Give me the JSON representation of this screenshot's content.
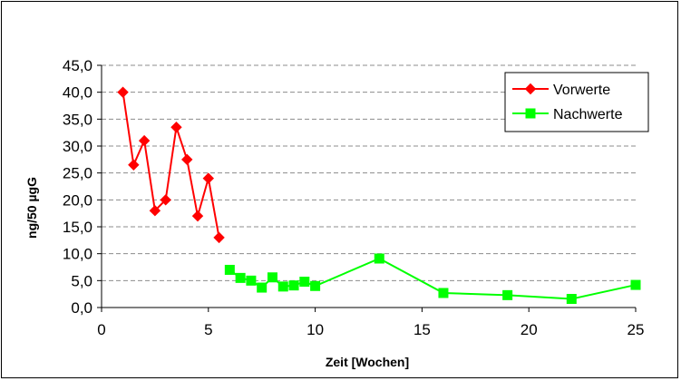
{
  "chart_data": {
    "type": "line",
    "title": "",
    "xlabel": "Zeit [Wochen]",
    "ylabel": "ng/50 µgG",
    "xlim": [
      0,
      25
    ],
    "ylim": [
      0,
      45
    ],
    "x_ticks": [
      0,
      5,
      10,
      15,
      20,
      25
    ],
    "y_ticks": [
      "0,0",
      "5,0",
      "10,0",
      "15,0",
      "20,0",
      "25,0",
      "30,0",
      "35,0",
      "40,0",
      "45,0"
    ],
    "grid": "horizontal dashed",
    "legend_position": "top-right",
    "series": [
      {
        "name": "Vorwerte",
        "color": "#ff0000",
        "marker": "diamond",
        "x": [
          1,
          1.5,
          2,
          2.5,
          3,
          3.5,
          4,
          4.5,
          5,
          5.5
        ],
        "y": [
          40.0,
          26.5,
          31.0,
          18.0,
          20.0,
          33.5,
          27.5,
          17.0,
          24.0,
          13.0
        ]
      },
      {
        "name": "Nachwerte",
        "color": "#00ff00",
        "marker": "square",
        "x": [
          6,
          6.5,
          7,
          7.5,
          8,
          8.5,
          9,
          9.5,
          10,
          13,
          16,
          19,
          22,
          25
        ],
        "y": [
          7.0,
          5.5,
          5.0,
          3.7,
          5.6,
          3.9,
          4.1,
          4.8,
          4.0,
          9.1,
          2.7,
          2.3,
          1.6,
          4.2
        ]
      }
    ]
  }
}
